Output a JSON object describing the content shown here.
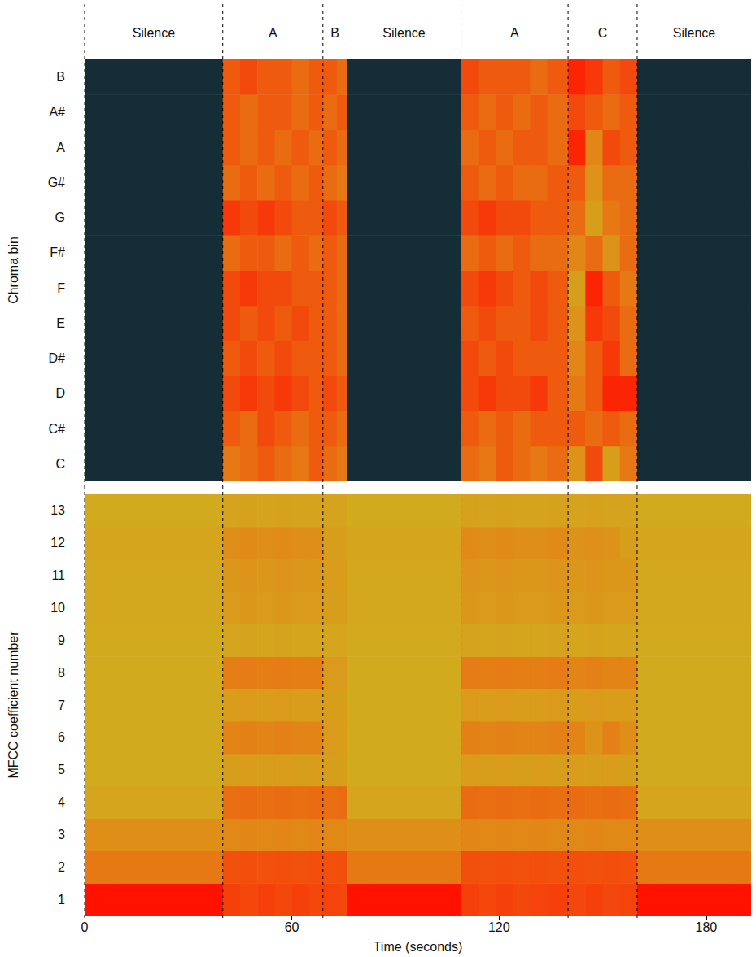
{
  "chart_data": [
    {
      "type": "heatmap",
      "ylabel": "Chroma bin",
      "tick_labels": "y",
      "categories": [
        "C",
        "C#",
        "D",
        "D#",
        "E",
        "F",
        "F#",
        "G",
        "G#",
        "A",
        "A#",
        "B"
      ],
      "xlim": [
        0,
        193
      ],
      "x_edges": [
        0,
        40,
        45,
        50,
        55,
        60,
        65,
        69,
        73,
        76,
        109,
        114,
        119,
        124,
        129,
        134,
        140,
        145,
        150,
        155,
        160,
        193
      ],
      "value_range": [
        0,
        1
      ],
      "segments": [
        {
          "label": "Silence",
          "start": 0,
          "end": 40
        },
        {
          "label": "A",
          "start": 40,
          "end": 69
        },
        {
          "label": "B",
          "start": 69,
          "end": 76
        },
        {
          "label": "Silence",
          "start": 76,
          "end": 109
        },
        {
          "label": "A",
          "start": 109,
          "end": 140
        },
        {
          "label": "C",
          "start": 140,
          "end": 160
        },
        {
          "label": "Silence",
          "start": 160,
          "end": 193
        }
      ],
      "cells": [
        [
          0.02,
          0.7,
          0.75,
          0.8,
          0.75,
          0.7,
          0.8,
          0.75,
          0.7,
          0.02,
          0.75,
          0.7,
          0.8,
          0.75,
          0.7,
          0.75,
          0.6,
          0.85,
          0.55,
          0.7,
          0.02
        ],
        [
          0.02,
          0.8,
          0.75,
          0.85,
          0.8,
          0.75,
          0.8,
          0.8,
          0.75,
          0.02,
          0.8,
          0.75,
          0.8,
          0.75,
          0.8,
          0.8,
          0.8,
          0.75,
          0.8,
          0.75,
          0.02
        ],
        [
          0.02,
          0.85,
          0.9,
          0.85,
          0.9,
          0.85,
          0.8,
          0.85,
          0.8,
          0.02,
          0.85,
          0.9,
          0.85,
          0.85,
          0.9,
          0.8,
          0.7,
          0.8,
          0.95,
          0.95,
          0.02
        ],
        [
          0.02,
          0.8,
          0.85,
          0.8,
          0.85,
          0.8,
          0.8,
          0.8,
          0.75,
          0.02,
          0.85,
          0.8,
          0.85,
          0.8,
          0.8,
          0.8,
          0.65,
          0.8,
          0.9,
          0.75,
          0.02
        ],
        [
          0.02,
          0.85,
          0.8,
          0.85,
          0.8,
          0.85,
          0.8,
          0.8,
          0.75,
          0.02,
          0.8,
          0.85,
          0.8,
          0.8,
          0.85,
          0.8,
          0.6,
          0.9,
          0.85,
          0.75,
          0.02
        ],
        [
          0.02,
          0.85,
          0.9,
          0.85,
          0.85,
          0.8,
          0.8,
          0.8,
          0.75,
          0.02,
          0.85,
          0.9,
          0.85,
          0.8,
          0.85,
          0.8,
          0.55,
          0.95,
          0.8,
          0.7,
          0.02
        ],
        [
          0.02,
          0.75,
          0.8,
          0.8,
          0.75,
          0.8,
          0.75,
          0.8,
          0.75,
          0.02,
          0.75,
          0.8,
          0.75,
          0.8,
          0.75,
          0.75,
          0.65,
          0.75,
          0.6,
          0.75,
          0.02
        ],
        [
          0.02,
          0.9,
          0.85,
          0.9,
          0.85,
          0.8,
          0.8,
          0.85,
          0.8,
          0.02,
          0.85,
          0.9,
          0.85,
          0.85,
          0.8,
          0.8,
          0.75,
          0.55,
          0.7,
          0.75,
          0.02
        ],
        [
          0.02,
          0.75,
          0.8,
          0.75,
          0.8,
          0.75,
          0.8,
          0.75,
          0.7,
          0.02,
          0.8,
          0.75,
          0.8,
          0.75,
          0.75,
          0.8,
          0.8,
          0.6,
          0.75,
          0.75,
          0.02
        ],
        [
          0.02,
          0.8,
          0.75,
          0.8,
          0.75,
          0.8,
          0.75,
          0.8,
          0.75,
          0.02,
          0.75,
          0.8,
          0.75,
          0.8,
          0.8,
          0.75,
          0.95,
          0.65,
          0.85,
          0.8,
          0.02
        ],
        [
          0.02,
          0.8,
          0.75,
          0.8,
          0.8,
          0.75,
          0.8,
          0.75,
          0.8,
          0.02,
          0.8,
          0.75,
          0.8,
          0.75,
          0.8,
          0.75,
          0.85,
          0.8,
          0.75,
          0.8,
          0.02
        ],
        [
          0.02,
          0.8,
          0.85,
          0.8,
          0.8,
          0.75,
          0.8,
          0.8,
          0.75,
          0.02,
          0.85,
          0.8,
          0.8,
          0.8,
          0.75,
          0.8,
          0.95,
          0.9,
          0.8,
          0.85,
          0.02
        ]
      ]
    },
    {
      "type": "heatmap",
      "xlabel": "Time (seconds)",
      "ylabel": "MFCC coefficient number",
      "categories": [
        1,
        2,
        3,
        4,
        5,
        6,
        7,
        8,
        9,
        10,
        11,
        12,
        13
      ],
      "xlim": [
        0,
        193
      ],
      "xticks": [
        0,
        60,
        120,
        180
      ],
      "x_edges": [
        0,
        40,
        45,
        50,
        55,
        60,
        65,
        69,
        73,
        76,
        109,
        114,
        119,
        124,
        129,
        134,
        140,
        145,
        150,
        155,
        160,
        193
      ],
      "value_range": [
        0,
        1
      ],
      "cells": [
        [
          1.0,
          0.88,
          0.86,
          0.88,
          0.86,
          0.88,
          0.86,
          0.87,
          0.86,
          1.0,
          0.88,
          0.86,
          0.88,
          0.86,
          0.87,
          0.88,
          0.86,
          0.88,
          0.86,
          0.87,
          1.0
        ],
        [
          0.7,
          0.83,
          0.84,
          0.83,
          0.84,
          0.83,
          0.84,
          0.83,
          0.84,
          0.7,
          0.84,
          0.83,
          0.84,
          0.83,
          0.84,
          0.83,
          0.84,
          0.83,
          0.84,
          0.83,
          0.7
        ],
        [
          0.62,
          0.64,
          0.65,
          0.64,
          0.65,
          0.64,
          0.65,
          0.64,
          0.64,
          0.62,
          0.65,
          0.64,
          0.65,
          0.64,
          0.65,
          0.64,
          0.64,
          0.65,
          0.64,
          0.64,
          0.62
        ],
        [
          0.52,
          0.74,
          0.75,
          0.74,
          0.75,
          0.74,
          0.75,
          0.74,
          0.75,
          0.52,
          0.75,
          0.74,
          0.75,
          0.74,
          0.75,
          0.74,
          0.75,
          0.74,
          0.75,
          0.74,
          0.52
        ],
        [
          0.5,
          0.55,
          0.56,
          0.55,
          0.56,
          0.55,
          0.56,
          0.55,
          0.55,
          0.5,
          0.56,
          0.55,
          0.56,
          0.55,
          0.56,
          0.55,
          0.56,
          0.55,
          0.56,
          0.55,
          0.5
        ],
        [
          0.5,
          0.66,
          0.67,
          0.66,
          0.67,
          0.66,
          0.66,
          0.57,
          0.56,
          0.5,
          0.67,
          0.66,
          0.67,
          0.66,
          0.66,
          0.67,
          0.66,
          0.6,
          0.67,
          0.62,
          0.5
        ],
        [
          0.5,
          0.56,
          0.57,
          0.56,
          0.57,
          0.56,
          0.56,
          0.55,
          0.55,
          0.5,
          0.57,
          0.56,
          0.57,
          0.56,
          0.56,
          0.57,
          0.56,
          0.57,
          0.56,
          0.56,
          0.5
        ],
        [
          0.5,
          0.68,
          0.69,
          0.68,
          0.69,
          0.68,
          0.68,
          0.57,
          0.57,
          0.5,
          0.69,
          0.68,
          0.69,
          0.68,
          0.68,
          0.69,
          0.66,
          0.67,
          0.66,
          0.66,
          0.5
        ],
        [
          0.5,
          0.52,
          0.53,
          0.52,
          0.53,
          0.52,
          0.52,
          0.52,
          0.52,
          0.5,
          0.53,
          0.52,
          0.53,
          0.52,
          0.52,
          0.53,
          0.52,
          0.53,
          0.52,
          0.52,
          0.5
        ],
        [
          0.51,
          0.57,
          0.58,
          0.57,
          0.58,
          0.57,
          0.57,
          0.55,
          0.55,
          0.51,
          0.58,
          0.57,
          0.58,
          0.57,
          0.57,
          0.58,
          0.57,
          0.58,
          0.57,
          0.57,
          0.51
        ],
        [
          0.51,
          0.58,
          0.59,
          0.58,
          0.59,
          0.58,
          0.58,
          0.56,
          0.56,
          0.51,
          0.59,
          0.58,
          0.59,
          0.58,
          0.58,
          0.59,
          0.58,
          0.59,
          0.58,
          0.58,
          0.51
        ],
        [
          0.52,
          0.62,
          0.63,
          0.62,
          0.63,
          0.62,
          0.62,
          0.55,
          0.55,
          0.52,
          0.63,
          0.62,
          0.63,
          0.62,
          0.62,
          0.63,
          0.6,
          0.61,
          0.6,
          0.55,
          0.52
        ],
        [
          0.5,
          0.53,
          0.54,
          0.53,
          0.54,
          0.53,
          0.53,
          0.53,
          0.53,
          0.5,
          0.54,
          0.53,
          0.54,
          0.53,
          0.53,
          0.54,
          0.53,
          0.54,
          0.53,
          0.53,
          0.5
        ]
      ]
    }
  ]
}
